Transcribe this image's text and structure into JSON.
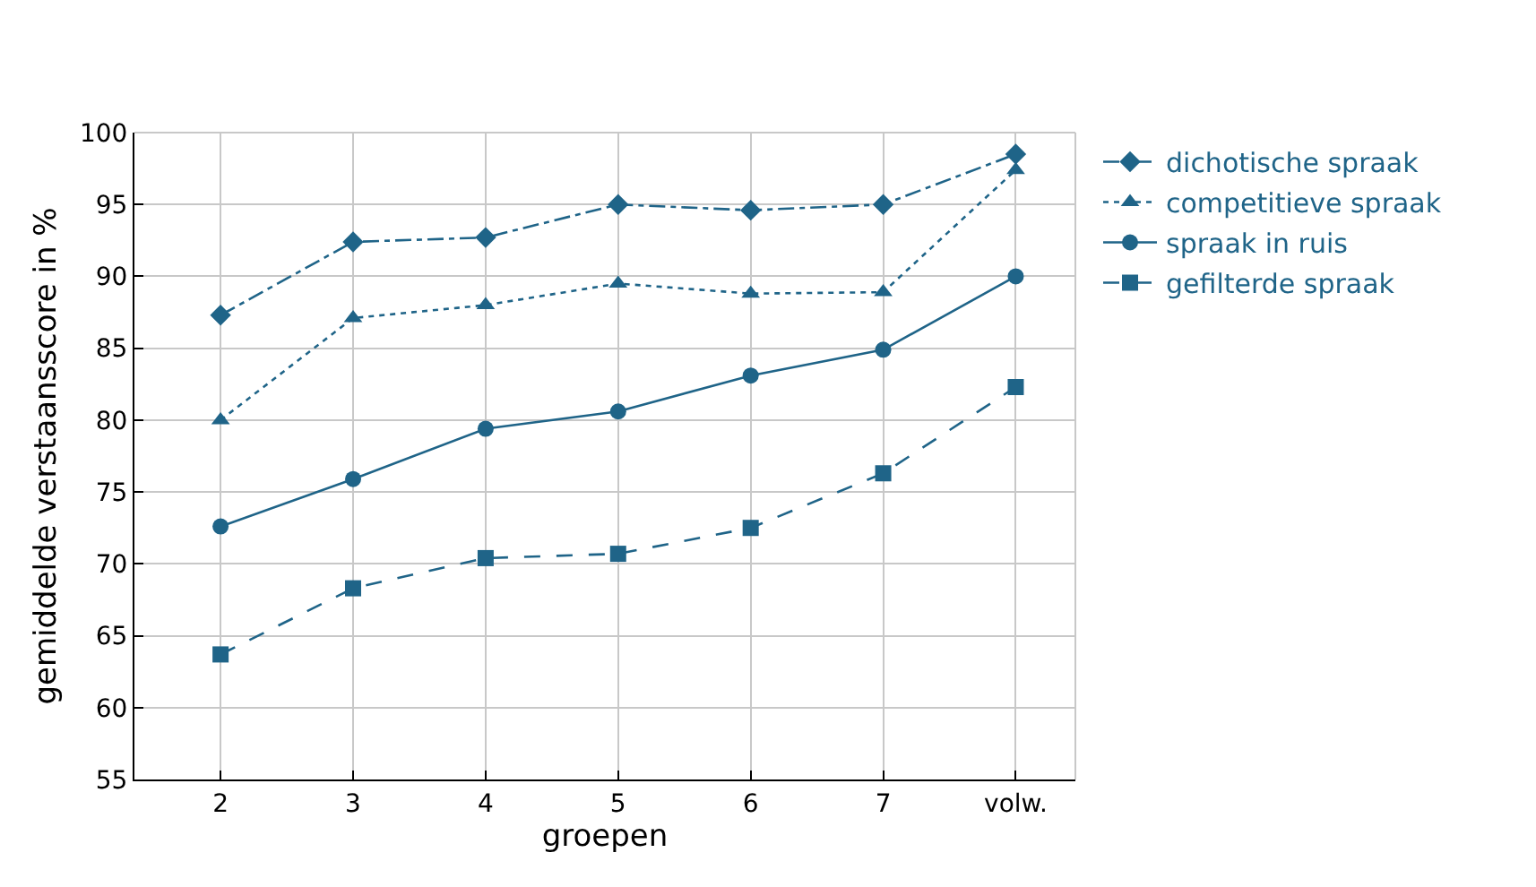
{
  "chart_data": {
    "type": "line",
    "xlabel": "groepen",
    "ylabel": "gemiddelde verstaansscore in %",
    "categories": [
      "2",
      "3",
      "4",
      "5",
      "6",
      "7",
      "volw."
    ],
    "ylim": [
      55,
      100
    ],
    "yticks": [
      55,
      60,
      65,
      70,
      75,
      80,
      85,
      90,
      95,
      100
    ],
    "grid": true,
    "legend": "top right",
    "series": [
      {
        "name": "dichotische spraak",
        "color": "#1f6488",
        "marker": "diamond",
        "line_style": "dashdot",
        "values": [
          87.3,
          92.4,
          92.7,
          95.0,
          94.6,
          95.0,
          98.5
        ]
      },
      {
        "name": "competitieve spraak",
        "color": "#1f6488",
        "marker": "triangle",
        "line_style": "dotted",
        "values": [
          80.0,
          87.1,
          88.0,
          89.5,
          88.8,
          88.9,
          97.4
        ]
      },
      {
        "name": "spraak in ruis",
        "color": "#1f6488",
        "marker": "circle",
        "line_style": "solid",
        "values": [
          72.6,
          75.9,
          79.4,
          80.6,
          83.1,
          84.9,
          90.0
        ]
      },
      {
        "name": "gefilterde spraak",
        "color": "#1f6488",
        "marker": "square",
        "line_style": "dashed",
        "values": [
          63.7,
          68.3,
          70.4,
          70.7,
          72.5,
          76.3,
          82.3
        ]
      }
    ]
  }
}
